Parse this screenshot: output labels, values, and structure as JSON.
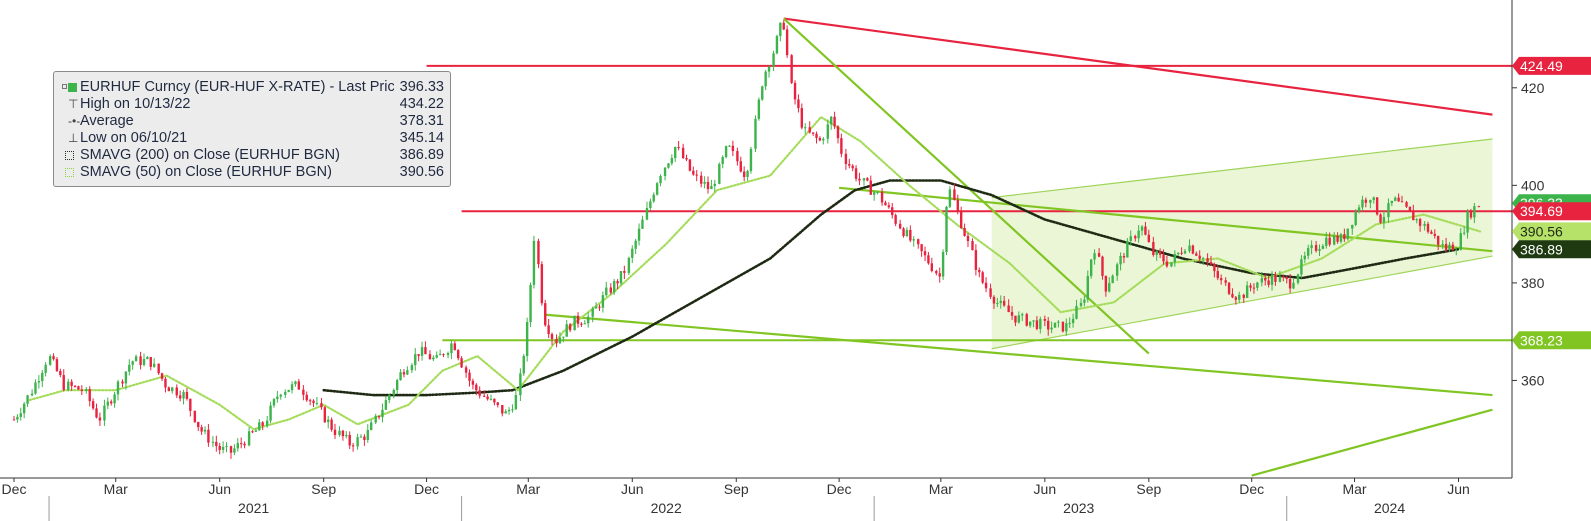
{
  "chart_data": {
    "type": "candlestick-line",
    "title": "EURHUF Curncy (EUR-HUF X-RATE)",
    "ylim": [
      340,
      438
    ],
    "y_ticks": [
      360,
      380,
      400,
      420
    ],
    "x_ticks": [
      {
        "label": "Dec",
        "date": "2020-12"
      },
      {
        "label": "Mar",
        "date": "2021-03"
      },
      {
        "label": "Jun",
        "date": "2021-06"
      },
      {
        "label": "Sep",
        "date": "2021-09"
      },
      {
        "label": "Dec",
        "date": "2021-12"
      },
      {
        "label": "Mar",
        "date": "2022-03"
      },
      {
        "label": "Jun",
        "date": "2022-06"
      },
      {
        "label": "Sep",
        "date": "2022-09"
      },
      {
        "label": "Dec",
        "date": "2022-12"
      },
      {
        "label": "Mar",
        "date": "2023-03"
      },
      {
        "label": "Jun",
        "date": "2023-06"
      },
      {
        "label": "Sep",
        "date": "2023-09"
      },
      {
        "label": "Dec",
        "date": "2023-12"
      },
      {
        "label": "Mar",
        "date": "2024-03"
      },
      {
        "label": "Jun",
        "date": "2024-06"
      }
    ],
    "year_labels": [
      "2021",
      "2022",
      "2023",
      "2024"
    ],
    "price_series": {
      "name": "EURHUF Curncy (EUR-HUF X-RATE) - Last Price",
      "points": [
        [
          "2020-12-01",
          352
        ],
        [
          "2020-12-15",
          357
        ],
        [
          "2021-01-01",
          365
        ],
        [
          "2021-01-15",
          359
        ],
        [
          "2021-02-01",
          358
        ],
        [
          "2021-02-15",
          352
        ],
        [
          "2021-03-01",
          358
        ],
        [
          "2021-03-15",
          364
        ],
        [
          "2021-04-01",
          364
        ],
        [
          "2021-04-15",
          359
        ],
        [
          "2021-05-01",
          357
        ],
        [
          "2021-05-15",
          350
        ],
        [
          "2021-06-01",
          346
        ],
        [
          "2021-06-10",
          345.14
        ],
        [
          "2021-06-25",
          348
        ],
        [
          "2021-07-10",
          351
        ],
        [
          "2021-07-25",
          358
        ],
        [
          "2021-08-10",
          359
        ],
        [
          "2021-08-25",
          355
        ],
        [
          "2021-09-10",
          350
        ],
        [
          "2021-09-25",
          347
        ],
        [
          "2021-10-10",
          349
        ],
        [
          "2021-10-25",
          355
        ],
        [
          "2021-11-10",
          362
        ],
        [
          "2021-11-25",
          366
        ],
        [
          "2021-12-10",
          364
        ],
        [
          "2021-12-25",
          368
        ],
        [
          "2022-01-10",
          359
        ],
        [
          "2022-01-25",
          356
        ],
        [
          "2022-02-10",
          353
        ],
        [
          "2022-02-20",
          357
        ],
        [
          "2022-03-01",
          372
        ],
        [
          "2022-03-07",
          390
        ],
        [
          "2022-03-15",
          373
        ],
        [
          "2022-03-25",
          368
        ],
        [
          "2022-04-10",
          372
        ],
        [
          "2022-04-25",
          373
        ],
        [
          "2022-05-10",
          378
        ],
        [
          "2022-05-25",
          382
        ],
        [
          "2022-06-10",
          392
        ],
        [
          "2022-06-25",
          402
        ],
        [
          "2022-07-10",
          408
        ],
        [
          "2022-07-25",
          402
        ],
        [
          "2022-08-10",
          399
        ],
        [
          "2022-08-25",
          408
        ],
        [
          "2022-09-10",
          402
        ],
        [
          "2022-09-25",
          422
        ],
        [
          "2022-10-05",
          428
        ],
        [
          "2022-10-13",
          434.22
        ],
        [
          "2022-10-20",
          420
        ],
        [
          "2022-11-01",
          411
        ],
        [
          "2022-11-15",
          409
        ],
        [
          "2022-11-25",
          414
        ],
        [
          "2022-12-05",
          406
        ],
        [
          "2022-12-20",
          401
        ],
        [
          "2023-01-05",
          398
        ],
        [
          "2023-01-20",
          393
        ],
        [
          "2023-02-05",
          388
        ],
        [
          "2023-02-20",
          384
        ],
        [
          "2023-03-01",
          381
        ],
        [
          "2023-03-08",
          400
        ],
        [
          "2023-03-20",
          392
        ],
        [
          "2023-04-05",
          381
        ],
        [
          "2023-04-20",
          376
        ],
        [
          "2023-05-05",
          373
        ],
        [
          "2023-05-20",
          372
        ],
        [
          "2023-06-05",
          371
        ],
        [
          "2023-06-20",
          371
        ],
        [
          "2023-07-05",
          376
        ],
        [
          "2023-07-15",
          388
        ],
        [
          "2023-07-25",
          379
        ],
        [
          "2023-08-10",
          386
        ],
        [
          "2023-08-25",
          392
        ],
        [
          "2023-09-05",
          386
        ],
        [
          "2023-09-20",
          384
        ],
        [
          "2023-10-05",
          388
        ],
        [
          "2023-10-20",
          385
        ],
        [
          "2023-11-05",
          380
        ],
        [
          "2023-11-20",
          377
        ],
        [
          "2023-12-05",
          380
        ],
        [
          "2023-12-20",
          381
        ],
        [
          "2024-01-05",
          380
        ],
        [
          "2024-01-20",
          386
        ],
        [
          "2024-02-05",
          389
        ],
        [
          "2024-02-20",
          389
        ],
        [
          "2024-03-05",
          396
        ],
        [
          "2024-03-15",
          398
        ],
        [
          "2024-03-25",
          393
        ],
        [
          "2024-04-05",
          397
        ],
        [
          "2024-04-20",
          394
        ],
        [
          "2024-05-05",
          391
        ],
        [
          "2024-05-20",
          387
        ],
        [
          "2024-06-01",
          388
        ],
        [
          "2024-06-10",
          394
        ],
        [
          "2024-06-20",
          396.33
        ]
      ]
    },
    "sma200": {
      "name": "SMAVG (200)  on Close (EURHUF BGN)",
      "points": [
        [
          "2021-09-01",
          358
        ],
        [
          "2021-10-15",
          357
        ],
        [
          "2021-12-01",
          357
        ],
        [
          "2022-01-15",
          357.5
        ],
        [
          "2022-02-15",
          358
        ],
        [
          "2022-04-01",
          362
        ],
        [
          "2022-06-01",
          369
        ],
        [
          "2022-08-01",
          377
        ],
        [
          "2022-10-01",
          385
        ],
        [
          "2022-11-15",
          394
        ],
        [
          "2022-12-15",
          399
        ],
        [
          "2023-01-15",
          401
        ],
        [
          "2023-03-01",
          401
        ],
        [
          "2023-04-15",
          398
        ],
        [
          "2023-06-01",
          393
        ],
        [
          "2023-08-01",
          389
        ],
        [
          "2023-10-01",
          385
        ],
        [
          "2023-12-01",
          382
        ],
        [
          "2024-01-15",
          381
        ],
        [
          "2024-03-01",
          383
        ],
        [
          "2024-04-15",
          385
        ],
        [
          "2024-06-01",
          386.89
        ]
      ]
    },
    "sma50": {
      "name": "SMAVG (50)  on Close (EURHUF BGN)",
      "points": [
        [
          "2020-12-15",
          356
        ],
        [
          "2021-01-15",
          358
        ],
        [
          "2021-03-01",
          358
        ],
        [
          "2021-04-15",
          361
        ],
        [
          "2021-06-01",
          355
        ],
        [
          "2021-07-01",
          350
        ],
        [
          "2021-08-01",
          352
        ],
        [
          "2021-09-01",
          355
        ],
        [
          "2021-10-01",
          351
        ],
        [
          "2021-11-15",
          355
        ],
        [
          "2021-12-15",
          362
        ],
        [
          "2022-01-15",
          365
        ],
        [
          "2022-02-20",
          358
        ],
        [
          "2022-04-01",
          370
        ],
        [
          "2022-05-15",
          378
        ],
        [
          "2022-07-01",
          388
        ],
        [
          "2022-08-15",
          399
        ],
        [
          "2022-10-01",
          402
        ],
        [
          "2022-11-15",
          414
        ],
        [
          "2022-12-20",
          409
        ],
        [
          "2023-02-01",
          400
        ],
        [
          "2023-03-15",
          392
        ],
        [
          "2023-05-01",
          384
        ],
        [
          "2023-06-15",
          374
        ],
        [
          "2023-08-01",
          376
        ],
        [
          "2023-09-15",
          384
        ],
        [
          "2023-11-01",
          385
        ],
        [
          "2023-12-15",
          381
        ],
        [
          "2024-02-01",
          385
        ],
        [
          "2024-03-20",
          392
        ],
        [
          "2024-05-01",
          394
        ],
        [
          "2024-06-20",
          390.56
        ]
      ]
    },
    "legend": [
      {
        "label": "EURHUF Curncy (EUR-HUF X-RATE) - Last Price",
        "value": "396.33"
      },
      {
        "label": "High on 10/13/22",
        "value": "434.22"
      },
      {
        "label": "Average",
        "value": "378.31"
      },
      {
        "label": "Low on 06/10/21",
        "value": "345.14"
      },
      {
        "label": "SMAVG (200)  on Close (EURHUF BGN)",
        "value": "386.89"
      },
      {
        "label": "SMAVG (50)  on Close (EURHUF BGN)",
        "value": "390.56"
      }
    ],
    "horizontal_levels": [
      {
        "value": 424.49,
        "label": "424.49",
        "color": "#e8233f",
        "start": "2021-12-01"
      },
      {
        "value": 394.69,
        "label": "394.69",
        "color": "#e8233f",
        "start": "2022-01-01"
      },
      {
        "value": 368.23,
        "label": "368.23",
        "color": "#80c522",
        "start": "2021-12-15"
      }
    ],
    "value_tags": [
      {
        "value": 396.33,
        "label": "396.33",
        "color": "#3cb44b"
      },
      {
        "value": 390.56,
        "label": "390.56",
        "color": "#b6e26a"
      },
      {
        "value": 386.89,
        "label": "386.89",
        "color": "#1f3a10"
      }
    ],
    "trend_lines": [
      {
        "from": [
          "2022-10-13",
          434.2
        ],
        "to": [
          "2024-07-01",
          414.5
        ],
        "color": "#e8233f"
      },
      {
        "from": [
          "2022-10-13",
          434.2
        ],
        "to": [
          "2023-09-01",
          365.5
        ],
        "color": "#80c522"
      },
      {
        "from": [
          "2022-03-15",
          373.5
        ],
        "to": [
          "2024-07-01",
          357.0
        ],
        "color": "#80c522"
      },
      {
        "from": [
          "2022-12-01",
          399.5
        ],
        "to": [
          "2024-07-01",
          386.5
        ],
        "color": "#80c522"
      },
      {
        "from": [
          "2023-12-01",
          340.5
        ],
        "to": [
          "2024-07-01",
          354.0
        ],
        "color": "#80c522"
      }
    ],
    "channel": {
      "upper": [
        [
          "2023-04-15",
          397.5
        ],
        [
          "2024-07-01",
          409.5
        ]
      ],
      "lower": [
        [
          "2023-04-15",
          366.5
        ],
        [
          "2024-07-01",
          385.5
        ]
      ],
      "fill": "#eaf6d6",
      "stroke": "#9fd45a"
    },
    "colors": {
      "up": "#3cb44b",
      "down": "#e8233f",
      "sma200": "#1f2a14",
      "sma50": "#a6dc5c"
    }
  }
}
